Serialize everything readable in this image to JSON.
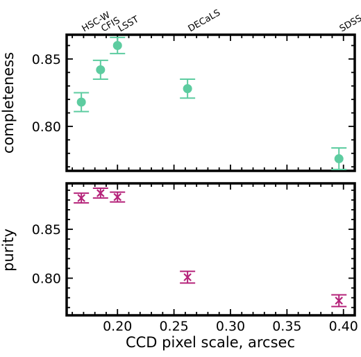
{
  "chart_data": [
    {
      "type": "scatter",
      "ylabel": "completeness",
      "xlim": [
        0.155,
        0.41
      ],
      "ylim": [
        0.767,
        0.868
      ],
      "yticks": [
        "0.80",
        "0.85"
      ],
      "yticks_values": [
        0.8,
        0.85
      ],
      "top_labels": [
        {
          "text": "HSC-W",
          "x": 0.168
        },
        {
          "text": "CFIS",
          "x": 0.185
        },
        {
          "text": "LSST",
          "x": 0.2
        },
        {
          "text": "DECaLS",
          "x": 0.262
        },
        {
          "text": "SDSS",
          "x": 0.396
        }
      ],
      "color": "#5dcca0",
      "marker": "circle",
      "points": [
        {
          "x": 0.168,
          "y": 0.818,
          "err": 0.007
        },
        {
          "x": 0.185,
          "y": 0.842,
          "err": 0.007
        },
        {
          "x": 0.2,
          "y": 0.86,
          "err": 0.006
        },
        {
          "x": 0.262,
          "y": 0.828,
          "err": 0.007
        },
        {
          "x": 0.396,
          "y": 0.776,
          "err": 0.008
        }
      ],
      "grid": false
    },
    {
      "type": "scatter",
      "ylabel": "purity",
      "xlabel": "CCD pixel scale, arcsec",
      "xlim": [
        0.155,
        0.41
      ],
      "ylim": [
        0.762,
        0.897
      ],
      "yticks": [
        "0.80",
        "0.85"
      ],
      "yticks_values": [
        0.8,
        0.85
      ],
      "xticks": [
        "0.20",
        "0.25",
        "0.30",
        "0.35",
        "0.40"
      ],
      "xticks_values": [
        0.2,
        0.25,
        0.3,
        0.35,
        0.4
      ],
      "color": "#b5237a",
      "marker": "x",
      "points": [
        {
          "x": 0.168,
          "y": 0.882,
          "err": 0.005
        },
        {
          "x": 0.185,
          "y": 0.887,
          "err": 0.005
        },
        {
          "x": 0.2,
          "y": 0.883,
          "err": 0.005
        },
        {
          "x": 0.262,
          "y": 0.801,
          "err": 0.006
        },
        {
          "x": 0.396,
          "y": 0.777,
          "err": 0.006
        }
      ],
      "grid": false
    }
  ]
}
